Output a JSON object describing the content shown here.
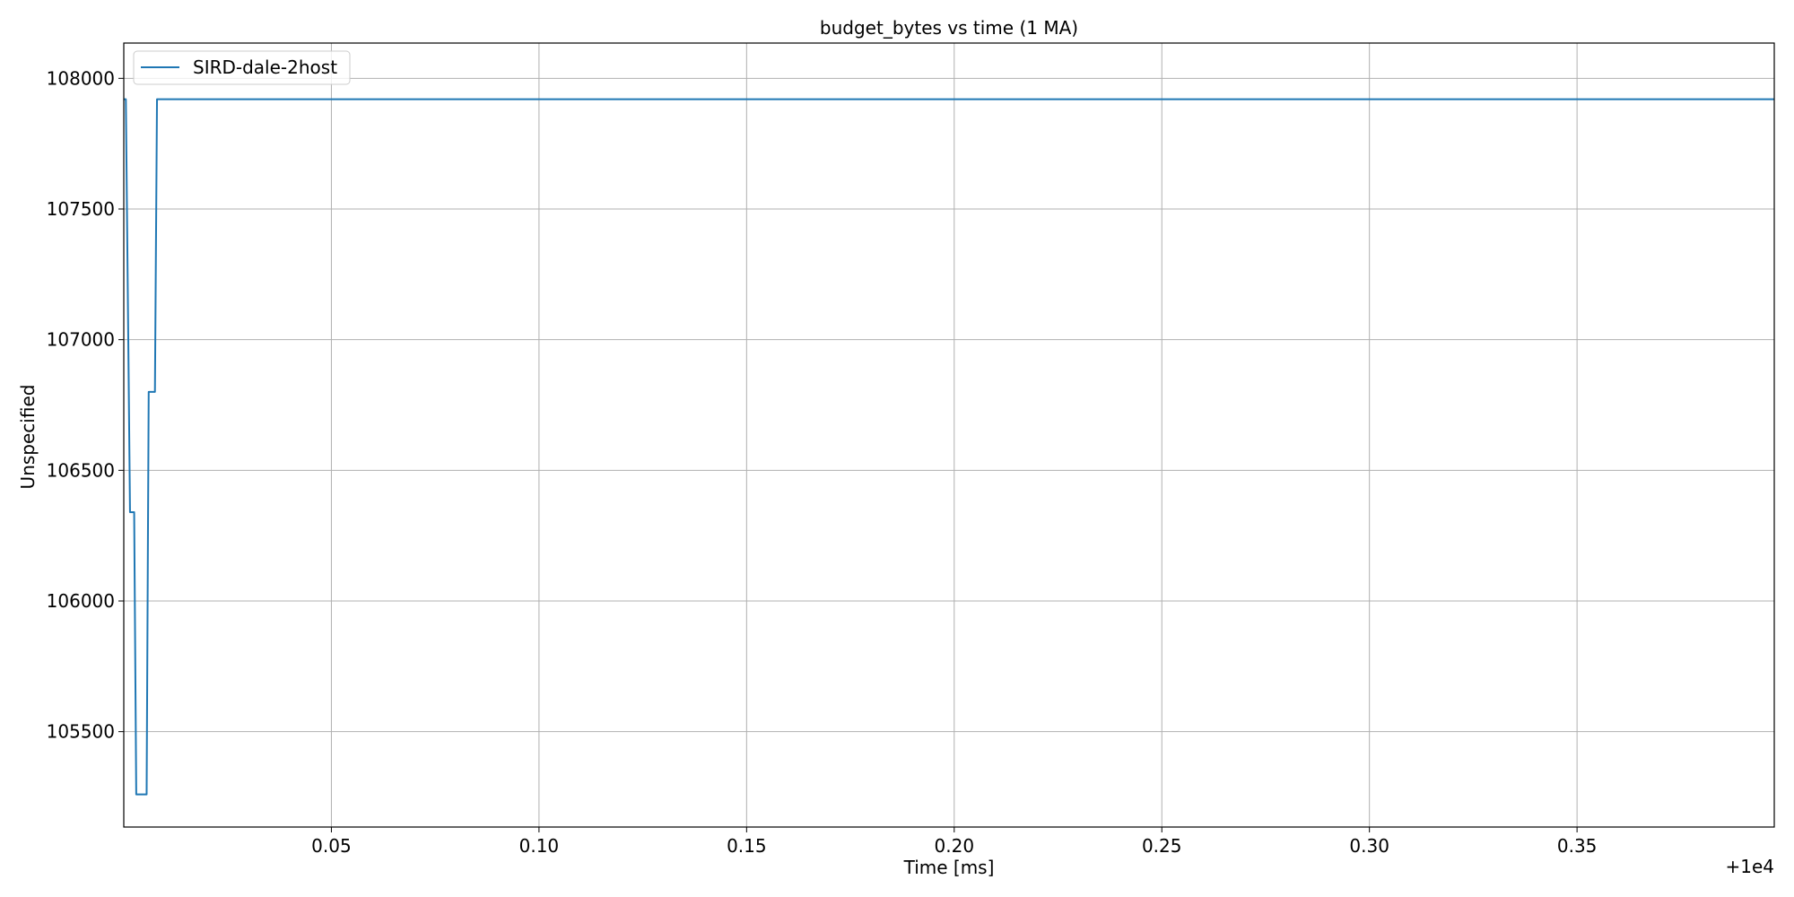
{
  "chart_data": {
    "type": "line",
    "title": "budget_bytes vs time (1 MA)",
    "xlabel": "Time [ms]",
    "ylabel": "Unspecified",
    "x_offset_label": "+1e4",
    "xlim": [
      10000.0,
      10000.3975
    ],
    "ylim": [
      105135,
      108135
    ],
    "x_ticks": [
      10000.05,
      10000.1,
      10000.15,
      10000.2,
      10000.25,
      10000.3,
      10000.35
    ],
    "x_tick_labels": [
      "0.05",
      "0.10",
      "0.15",
      "0.20",
      "0.25",
      "0.30",
      "0.35"
    ],
    "y_ticks": [
      105500,
      106000,
      106500,
      107000,
      107500,
      108000
    ],
    "y_tick_labels": [
      "105500",
      "106000",
      "106500",
      "107000",
      "107500",
      "108000"
    ],
    "grid": true,
    "legend_position": "upper left",
    "series": [
      {
        "name": "SIRD-dale-2host",
        "color": "#1f77b4",
        "x": [
          10000.0,
          10000.0005,
          10000.0015,
          10000.002,
          10000.0025,
          10000.003,
          10000.0035,
          10000.0055,
          10000.006,
          10000.0065,
          10000.0075,
          10000.008,
          10000.0085,
          10000.0095,
          10000.01,
          10000.3975
        ],
        "y": [
          107920,
          107920,
          106340,
          106340,
          106340,
          105260,
          105260,
          105260,
          106800,
          106800,
          106800,
          107920,
          107920,
          107920,
          107920,
          107920
        ]
      }
    ]
  }
}
